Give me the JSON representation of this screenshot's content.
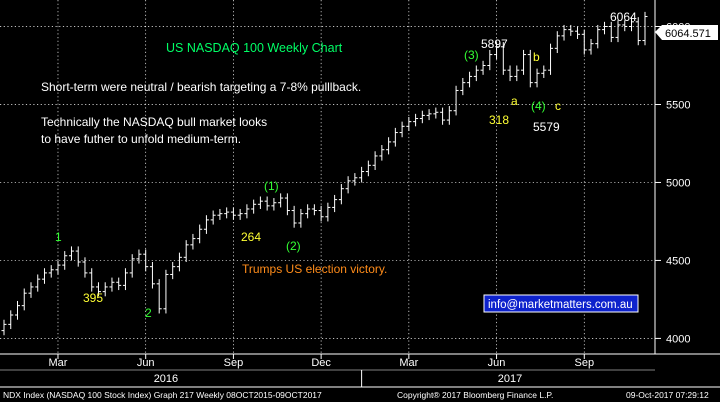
{
  "chart_data": {
    "type": "ohlc",
    "title": "US NASDAQ 100 Weekly Chart",
    "subtitle_lines": [
      "Short-term were neutral / bearish targeting a 7-8% pulllback.",
      "Technically the NASDAQ bull market looks",
      "to have futher to unfold medium-term."
    ],
    "ylim": [
      3900,
      6170
    ],
    "y_ticks": [
      4000,
      4500,
      5000,
      5500,
      6000
    ],
    "last_price": "6064.571",
    "x_month_labels": [
      {
        "label": "Mar",
        "week": 8
      },
      {
        "label": "Jun",
        "week": 21
      },
      {
        "label": "Sep",
        "week": 34
      },
      {
        "label": "Dec",
        "week": 47
      },
      {
        "label": "Mar",
        "week": 60
      },
      {
        "label": "Jun",
        "week": 73
      },
      {
        "label": "Sep",
        "week": 86
      }
    ],
    "x_year_labels": [
      {
        "label": "2016",
        "week": 24
      },
      {
        "label": "2017",
        "week": 75
      }
    ],
    "closes": [
      4090,
      4150,
      4210,
      4290,
      4330,
      4380,
      4420,
      4440,
      4470,
      4530,
      4560,
      4490,
      4420,
      4330,
      4300,
      4330,
      4360,
      4340,
      4420,
      4510,
      4540,
      4460,
      4350,
      4190,
      4410,
      4460,
      4520,
      4600,
      4640,
      4700,
      4760,
      4790,
      4800,
      4810,
      4790,
      4800,
      4830,
      4860,
      4880,
      4850,
      4870,
      4900,
      4820,
      4740,
      4800,
      4830,
      4820,
      4780,
      4840,
      4890,
      4960,
      5010,
      5030,
      5070,
      5110,
      5170,
      5210,
      5260,
      5320,
      5360,
      5390,
      5410,
      5430,
      5440,
      5450,
      5400,
      5460,
      5590,
      5640,
      5680,
      5720,
      5750,
      5820,
      5870,
      5720,
      5680,
      5720,
      5820,
      5640,
      5700,
      5720,
      5860,
      5940,
      5980,
      5970,
      5950,
      5850,
      5890,
      5980,
      6000,
      5930,
      6010,
      6000,
      6030,
      5910,
      6064
    ]
  },
  "annotations": {
    "w1_top": "1",
    "w2_bottom": "2",
    "label_395": "395",
    "label_264": "264",
    "wave1_paren": "(1)",
    "wave2_paren": "(2)",
    "wave3_paren": "(3)",
    "wave4_paren": "(4)",
    "peak_5897": "5897",
    "label_318": "318",
    "label_a": "a",
    "label_b": "b",
    "label_c": "c",
    "low_5579": "5579",
    "peak_6064": "6064",
    "election": "Trumps US election victory."
  },
  "website": "info@marketmatters.com.au",
  "footer": {
    "left": "NDX Index (NASDAQ 100 Stock Index) Graph 217  Weekly 08OCT2015-09OCT2017",
    "center": "Copyright® 2017 Bloomberg Finance L.P.",
    "right": "09-Oct-2017 07:29:12"
  },
  "colors": {
    "background": "#000000",
    "bars": "#ffffff",
    "grid": "#ffffff",
    "title": "#00ff66",
    "green_label": "#33ff33",
    "yellow_label": "#ffff33",
    "orange_label": "#ff8c1a",
    "website_box": "#0d22cc"
  }
}
